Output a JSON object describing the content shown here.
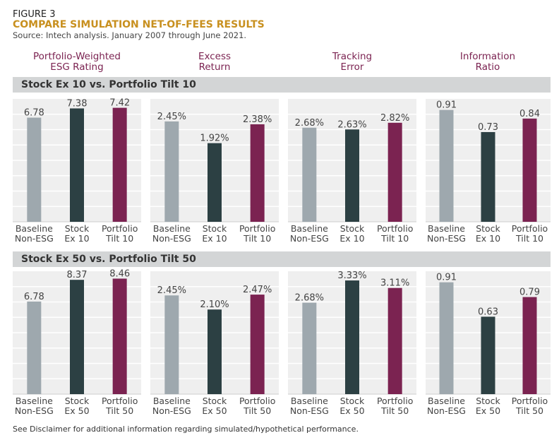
{
  "figure_label": "FIGURE 3",
  "title": "COMPARE SIMULATION NET-OF-FEES RESULTS",
  "source": "Source: Intech analysis. January 2007 through June 2021.",
  "metrics": [
    "Portfolio-Weighted\nESG Rating",
    "Excess\nReturn",
    "Tracking\nError",
    "Information\nRatio"
  ],
  "footnote": "See Disclaimer for additional information regarding simulated/hypothetical performance.",
  "colors": {
    "baseline": "#9ea8ae",
    "stock_ex": "#2c4043",
    "portfolio_tilt": "#7b2351",
    "panel_bg": "#efefef",
    "grid": "#ffffff"
  },
  "chart_data": [
    {
      "type": "bar",
      "row": "Stock Ex 10 vs. Portfolio Tilt 10",
      "categories": [
        "Baseline\nNon-ESG",
        "Stock\nEx 10",
        "Portfolio\nTilt 10"
      ],
      "panels": [
        {
          "metric": "Portfolio-Weighted ESG Rating",
          "values": [
            6.78,
            7.38,
            7.42
          ],
          "labels": [
            "6.78",
            "7.38",
            "7.42"
          ],
          "ylim": [
            0,
            8
          ]
        },
        {
          "metric": "Excess Return",
          "values": [
            2.45,
            1.92,
            2.38
          ],
          "labels": [
            "2.45%",
            "1.92%",
            "2.38%"
          ],
          "ylim": [
            0,
            3
          ]
        },
        {
          "metric": "Tracking Error",
          "values": [
            2.68,
            2.63,
            2.82
          ],
          "labels": [
            "2.68%",
            "2.63%",
            "2.82%"
          ],
          "ylim": [
            0,
            3.5
          ]
        },
        {
          "metric": "Information Ratio",
          "values": [
            0.91,
            0.73,
            0.84
          ],
          "labels": [
            "0.91",
            "0.73",
            "0.84"
          ],
          "ylim": [
            0,
            1
          ]
        }
      ]
    },
    {
      "type": "bar",
      "row": "Stock Ex 50 vs. Portfolio Tilt 50",
      "categories": [
        "Baseline\nNon-ESG",
        "Stock\nEx 50",
        "Portfolio\nTilt 50"
      ],
      "panels": [
        {
          "metric": "Portfolio-Weighted ESG Rating",
          "values": [
            6.78,
            8.37,
            8.46
          ],
          "labels": [
            "6.78",
            "8.37",
            "8.46"
          ],
          "ylim": [
            0,
            9
          ]
        },
        {
          "metric": "Excess Return",
          "values": [
            2.45,
            2.1,
            2.47
          ],
          "labels": [
            "2.45%",
            "2.10%",
            "2.47%"
          ],
          "ylim": [
            0,
            3.05
          ]
        },
        {
          "metric": "Tracking Error",
          "values": [
            2.68,
            3.33,
            3.11
          ],
          "labels": [
            "2.68%",
            "3.33%",
            "3.11%"
          ],
          "ylim": [
            0,
            3.6
          ]
        },
        {
          "metric": "Information Ratio",
          "values": [
            0.91,
            0.63,
            0.79
          ],
          "labels": [
            "0.91",
            "0.63",
            "0.79"
          ],
          "ylim": [
            0,
            1
          ]
        }
      ]
    }
  ]
}
